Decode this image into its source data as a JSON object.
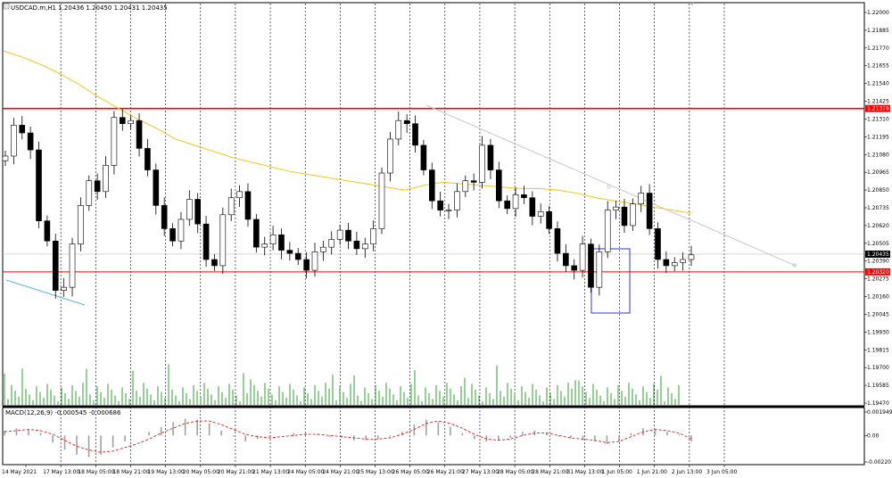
{
  "window": {
    "title": "USDCAD.m,H1  1.20436 1.20450 1.20431 1.20435"
  },
  "chart_data": {
    "type": "candlestick",
    "symbol": "USDCAD.m",
    "timeframe": "H1",
    "ohlc_header": {
      "open": 1.20436,
      "high": 1.2045,
      "low": 1.20431,
      "close": 1.20435
    },
    "ylim": [
      1.1947,
      1.22
    ],
    "price_ticks": [
      "1.22000",
      "1.21885",
      "1.21770",
      "1.21655",
      "1.21540",
      "1.21425",
      "1.21310",
      "1.21195",
      "1.21080",
      "1.20965",
      "1.20850",
      "1.20735",
      "1.20620",
      "1.20505",
      "1.20390",
      "1.20275",
      "1.20160",
      "1.20045",
      "1.19930",
      "1.19815",
      "1.19700",
      "1.19585",
      "1.19470"
    ],
    "current_price": {
      "label": "1.20435",
      "value": 1.20435,
      "color": "#000000"
    },
    "horizontal_levels": [
      {
        "label": "1.21378",
        "value": 1.21378,
        "color": "#ff0000"
      },
      {
        "label": "1.20320",
        "value": 1.2032,
        "color": "#ff0000"
      }
    ],
    "time_labels": [
      "14 May 2021",
      "17 May 13:00",
      "18 May 05:00",
      "18 May 21:00",
      "19 May 13:00",
      "20 May 05:00",
      "20 May 21:00",
      "21 May 13:00",
      "24 May 05:00",
      "24 May 21:00",
      "25 May 13:00",
      "26 May 05:00",
      "26 May 21:00",
      "27 May 13:00",
      "28 May 05:00",
      "28 May 21:00",
      "31 May 13:00",
      "1 Jun 05:00",
      "1 Jun 21:00",
      "2 Jun 13:00",
      "3 Jun 05:00"
    ],
    "moving_average": {
      "color": "#f5c518",
      "values": [
        1.2175,
        1.2171,
        1.2166,
        1.216,
        1.2153,
        1.2145,
        1.2138,
        1.2131,
        1.2125,
        1.2118,
        1.2114,
        1.211,
        1.2106,
        1.2103,
        1.21,
        1.2097,
        1.2095,
        1.2093,
        1.2091,
        1.2089,
        1.2087,
        1.2085,
        1.2088,
        1.209,
        1.2089,
        1.2088,
        1.2087,
        1.2086,
        1.2086,
        1.2085,
        1.2083,
        1.208,
        1.2078,
        1.2076,
        1.2074,
        1.2072,
        1.207
      ]
    },
    "candles_close": [
      1.2107,
      1.2127,
      1.2122,
      1.2111,
      1.2065,
      1.2052,
      1.202,
      1.2022,
      1.205,
      1.2075,
      1.2091,
      1.2084,
      1.2101,
      1.2132,
      1.2128,
      1.213,
      1.2112,
      1.2098,
      1.2075,
      1.206,
      1.2052,
      1.2066,
      1.2079,
      1.2063,
      1.204,
      1.2036,
      1.2069,
      1.208,
      1.2084,
      1.2066,
      1.2048,
      1.205,
      1.2056,
      1.2046,
      1.2044,
      1.204,
      1.2033,
      1.2045,
      1.2048,
      1.2053,
      1.2059,
      1.2052,
      1.2047,
      1.205,
      1.206,
      1.2096,
      1.2118,
      1.213,
      1.2128,
      1.2114,
      1.2098,
      1.2078,
      1.2072,
      1.2072,
      1.2084,
      1.2091,
      1.209,
      1.2114,
      1.2098,
      1.2078,
      1.2073,
      1.2082,
      1.208,
      1.2068,
      1.2071,
      1.206,
      1.2044,
      1.2036,
      1.2033,
      1.205,
      1.2022,
      1.2045,
      1.2072,
      1.2074,
      1.2062,
      1.2076,
      1.2083,
      1.206,
      1.204,
      1.2036,
      1.2038,
      1.204,
      1.2043
    ],
    "volume": {
      "color": "#2ca02c"
    },
    "macd": {
      "label": "MACD(12,26,9) -0.000545 -0.000686",
      "ticks": [
        "0.001949",
        "0.00",
        "-0.002201"
      ],
      "ylim": [
        -0.002201,
        0.001949
      ],
      "histogram": [
        0.0004,
        0.0006,
        0.0005,
        0.0002,
        -0.0006,
        -0.0012,
        -0.0016,
        -0.0018,
        -0.0016,
        -0.001,
        -0.0005,
        0.0,
        0.0003,
        0.0007,
        0.0011,
        0.0014,
        0.0013,
        0.001,
        0.0004,
        -0.0001,
        -0.0005,
        -0.0003,
        -0.0001,
        0.0,
        0.0002,
        0.0002,
        0.0001,
        -0.0001,
        -0.0002,
        -0.0004,
        -0.0004,
        -0.0003,
        -0.0001,
        0.0003,
        0.0009,
        0.0013,
        0.0011,
        0.0007,
        0.0002,
        -0.0003,
        -0.0005,
        -0.0004,
        -0.0002,
        0.0003,
        0.0004,
        0.0002,
        -0.0001,
        -0.0002,
        -0.0004,
        -0.0005,
        -0.0007,
        -0.0005,
        0.0002,
        0.0006,
        0.0005,
        0.0003,
        0.0001,
        -0.0005
      ],
      "signal": [
        0.0003,
        0.0004,
        0.0005,
        0.0004,
        0.0001,
        -0.0004,
        -0.0009,
        -0.0012,
        -0.0014,
        -0.0013,
        -0.001,
        -0.0007,
        -0.0003,
        0.0002,
        0.0006,
        0.001,
        0.0012,
        0.0012,
        0.0009,
        0.0005,
        0.0001,
        -0.0001,
        -0.0002,
        -0.0001,
        0.0,
        0.0001,
        0.0001,
        0.0,
        -0.0001,
        -0.0002,
        -0.0003,
        -0.0003,
        -0.0002,
        0.0001,
        0.0005,
        0.001,
        0.0012,
        0.001,
        0.0006,
        0.0001,
        -0.0003,
        -0.0004,
        -0.0003,
        0.0,
        0.0002,
        0.0002,
        0.0,
        -0.0002,
        -0.0003,
        -0.0004,
        -0.0006,
        -0.0005,
        -0.0001,
        0.0003,
        0.0005,
        0.0004,
        0.0002,
        -0.0003
      ],
      "signal_color": "#e02020",
      "histogram_color": "#a0a0a0"
    }
  }
}
